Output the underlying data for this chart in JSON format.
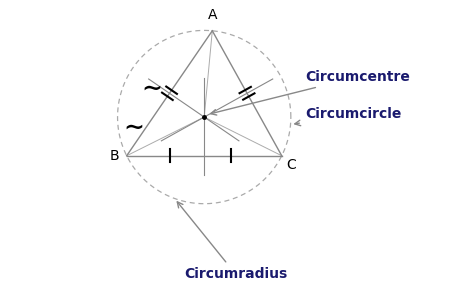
{
  "A": [
    0.42,
    0.92
  ],
  "B": [
    0.05,
    0.38
  ],
  "C": [
    0.72,
    0.38
  ],
  "triangle_color": "#888888",
  "perp_bisector_color": "#888888",
  "circle_color": "#aaaaaa",
  "background": "#ffffff",
  "label_A": "A",
  "label_B": "B",
  "label_C": "C",
  "label_circumcentre": "Circumcentre",
  "label_circumcircle": "Circumcircle",
  "label_circumradius": "Circumradius",
  "label_fontsize": 10,
  "vertex_fontsize": 10,
  "label_color": "#1a1a6e",
  "arrow_color": "#888888"
}
